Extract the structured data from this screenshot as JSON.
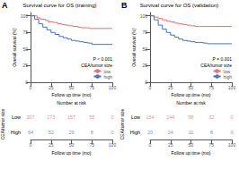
{
  "chart_data": [
    {
      "type": "line",
      "panel_label": "A",
      "title": "Survival curve for OS (training)",
      "xlabel": "Follow up time (mo)",
      "ylabel": "Overall survival (%)",
      "xlim": [
        0,
        100
      ],
      "ylim": [
        0,
        105
      ],
      "xticks": [
        0,
        25,
        50,
        75,
        100
      ],
      "yticks": [
        0,
        25,
        50,
        75,
        100
      ],
      "grid": false,
      "legend": "lower right",
      "legend_title": "CEA/tumor size",
      "annotation": "P < 0.001",
      "line_style": "step",
      "series": [
        {
          "name": "low",
          "color": "#e07070",
          "x": [
            0,
            8,
            12,
            18,
            22,
            28,
            33,
            38,
            42,
            48,
            52,
            58,
            62,
            68,
            72,
            75,
            100
          ],
          "values": [
            100,
            97,
            95,
            93,
            91,
            90,
            88,
            87,
            86,
            85,
            84,
            83,
            82,
            82,
            81,
            81,
            81
          ]
        },
        {
          "name": "high",
          "color": "#4472c4",
          "x": [
            0,
            5,
            10,
            15,
            20,
            25,
            30,
            35,
            40,
            45,
            50,
            55,
            60,
            65,
            70,
            75,
            100
          ],
          "values": [
            100,
            95,
            88,
            83,
            79,
            75,
            72,
            69,
            67,
            65,
            63,
            62,
            61,
            60,
            59,
            57,
            57
          ]
        }
      ]
    },
    {
      "type": "table",
      "title": "Number at risk",
      "xlabel": "Follow up time (mo)",
      "ylabel": "CEA/tumor size",
      "xlim": [
        0,
        100
      ],
      "xticks": [
        0,
        25,
        50,
        75,
        100
      ],
      "x": [
        0,
        25,
        50,
        75,
        100
      ],
      "data_labels": true,
      "series": [
        {
          "name": "Low",
          "color": "#e07070",
          "values": [
            307,
            173,
            157,
            55,
            0
          ]
        },
        {
          "name": "High",
          "color": "#4472c4",
          "values": [
            64,
            52,
            29,
            8,
            0
          ]
        }
      ]
    },
    {
      "type": "line",
      "panel_label": "B",
      "title": "Survival curve for OS (validation)",
      "xlabel": "Follow up time (mo)",
      "ylabel": "Overall survival (%)",
      "xlim": [
        0,
        100
      ],
      "ylim": [
        0,
        105
      ],
      "xticks": [
        0,
        25,
        50,
        75,
        100
      ],
      "yticks": [
        0,
        25,
        50,
        75,
        100
      ],
      "grid": false,
      "legend": "lower right",
      "legend_title": "CEA/tumor size",
      "annotation": "P = 0.001",
      "line_style": "step",
      "series": [
        {
          "name": "low",
          "color": "#e07070",
          "x": [
            0,
            5,
            10,
            15,
            20,
            25,
            30,
            35,
            40,
            45,
            50,
            55,
            60,
            65,
            70,
            75,
            100
          ],
          "values": [
            100,
            98,
            96,
            94,
            92,
            91,
            89,
            88,
            87,
            86,
            85,
            84,
            84,
            84,
            84,
            84,
            84
          ]
        },
        {
          "name": "high",
          "color": "#4472c4",
          "x": [
            0,
            5,
            10,
            15,
            20,
            25,
            30,
            35,
            40,
            45,
            50,
            55,
            60,
            65,
            70,
            75,
            100
          ],
          "values": [
            100,
            94,
            86,
            80,
            75,
            71,
            68,
            65,
            63,
            62,
            61,
            60,
            60,
            59,
            58,
            58,
            58
          ]
        }
      ]
    },
    {
      "type": "table",
      "title": "Number at risk",
      "xlabel": "Follow up time (mo)",
      "ylabel": "CEA/tumor size",
      "xlim": [
        0,
        100
      ],
      "xticks": [
        0,
        25,
        50,
        75,
        100
      ],
      "x": [
        0,
        25,
        50,
        75,
        100
      ],
      "data_labels": true,
      "series": [
        {
          "name": "Low",
          "color": "#e07070",
          "values": [
            154,
            144,
            98,
            32,
            0
          ]
        },
        {
          "name": "High",
          "color": "#4472c4",
          "values": [
            20,
            24,
            11,
            8,
            0
          ]
        }
      ]
    }
  ]
}
